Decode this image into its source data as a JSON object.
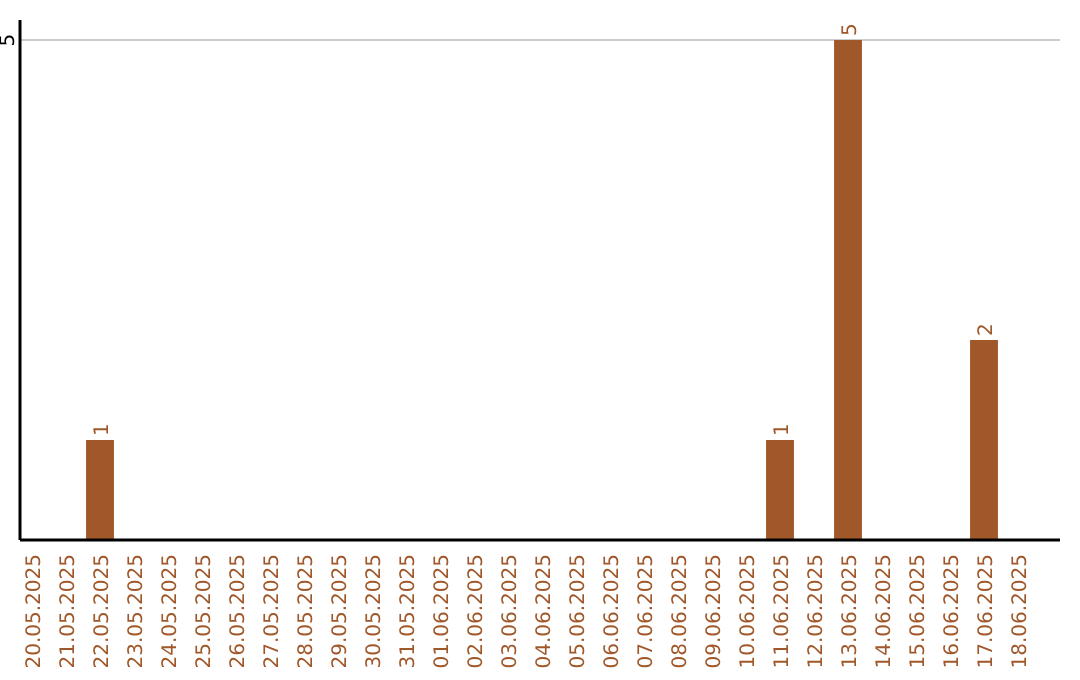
{
  "chart_data": {
    "type": "bar",
    "categories": [
      "20.05.2025",
      "21.05.2025",
      "22.05.2025",
      "23.05.2025",
      "24.05.2025",
      "25.05.2025",
      "26.05.2025",
      "27.05.2025",
      "28.05.2025",
      "29.05.2025",
      "30.05.2025",
      "31.05.2025",
      "01.06.2025",
      "02.06.2025",
      "03.06.2025",
      "04.06.2025",
      "05.06.2025",
      "06.06.2025",
      "07.06.2025",
      "08.06.2025",
      "09.06.2025",
      "10.06.2025",
      "11.06.2025",
      "12.06.2025",
      "13.06.2025",
      "14.06.2025",
      "15.06.2025",
      "16.06.2025",
      "17.06.2025",
      "18.06.2025"
    ],
    "values": [
      0,
      0,
      1,
      0,
      0,
      0,
      0,
      0,
      0,
      0,
      0,
      0,
      0,
      0,
      0,
      0,
      0,
      0,
      0,
      0,
      0,
      0,
      1,
      0,
      5,
      0,
      0,
      0,
      2,
      0
    ],
    "value_labels": [
      null,
      null,
      "1",
      null,
      null,
      null,
      null,
      null,
      null,
      null,
      null,
      null,
      null,
      null,
      null,
      null,
      null,
      null,
      null,
      null,
      null,
      null,
      "1",
      null,
      "5",
      null,
      null,
      null,
      "2",
      null
    ],
    "color": "#a0582a",
    "ylim": [
      0,
      5
    ],
    "yticks": [
      5
    ],
    "ref_lines": [
      {
        "axis": "y",
        "value": 5,
        "color": "#cccccc"
      }
    ]
  }
}
